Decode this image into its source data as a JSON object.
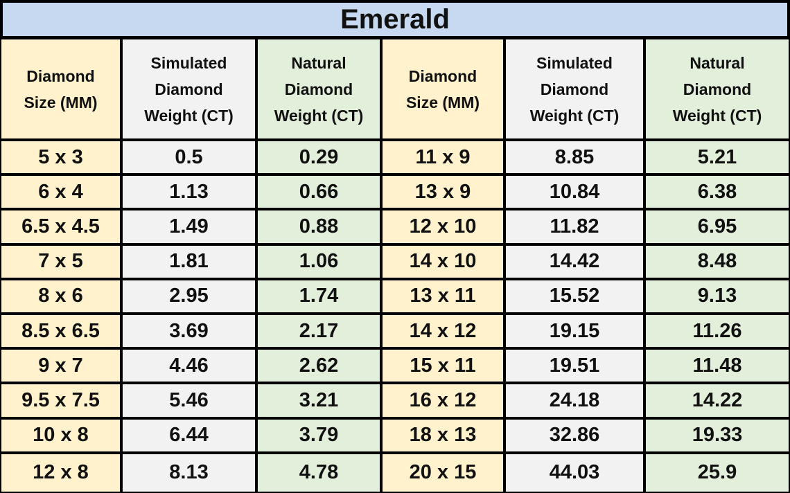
{
  "title": "Emerald",
  "table": {
    "header": [
      [
        "Diamond",
        "Size (MM)"
      ],
      [
        "Simulated",
        "Diamond",
        "Weight (CT)"
      ],
      [
        "Natural",
        "Diamond",
        "Weight (CT)"
      ],
      [
        "Diamond",
        "Size (MM)"
      ],
      [
        "Simulated",
        "Diamond",
        "Weight (CT)"
      ],
      [
        "Natural",
        "Diamond",
        "Weight (CT)"
      ]
    ],
    "rows": [
      [
        "5 x 3",
        "0.5",
        "0.29",
        "11 x 9",
        "8.85",
        "5.21"
      ],
      [
        "6 x 4",
        "1.13",
        "0.66",
        "13 x 9",
        "10.84",
        "6.38"
      ],
      [
        "6.5 x 4.5",
        "1.49",
        "0.88",
        "12 x 10",
        "11.82",
        "6.95"
      ],
      [
        "7 x 5",
        "1.81",
        "1.06",
        "14 x 10",
        "14.42",
        "8.48"
      ],
      [
        "8 x 6",
        "2.95",
        "1.74",
        "13 x 11",
        "15.52",
        "9.13"
      ],
      [
        "8.5 x 6.5",
        "3.69",
        "2.17",
        "14 x 12",
        "19.15",
        "11.26"
      ],
      [
        "9 x 7",
        "4.46",
        "2.62",
        "15 x 11",
        "19.51",
        "11.48"
      ],
      [
        "9.5 x 7.5",
        "5.46",
        "3.21",
        "16 x 12",
        "24.18",
        "14.22"
      ],
      [
        "10 x 8",
        "6.44",
        "3.79",
        "18 x 13",
        "32.86",
        "19.33"
      ],
      [
        "12 x 8",
        "8.13",
        "4.78",
        "20 x 15",
        "44.03",
        "25.9"
      ]
    ]
  }
}
